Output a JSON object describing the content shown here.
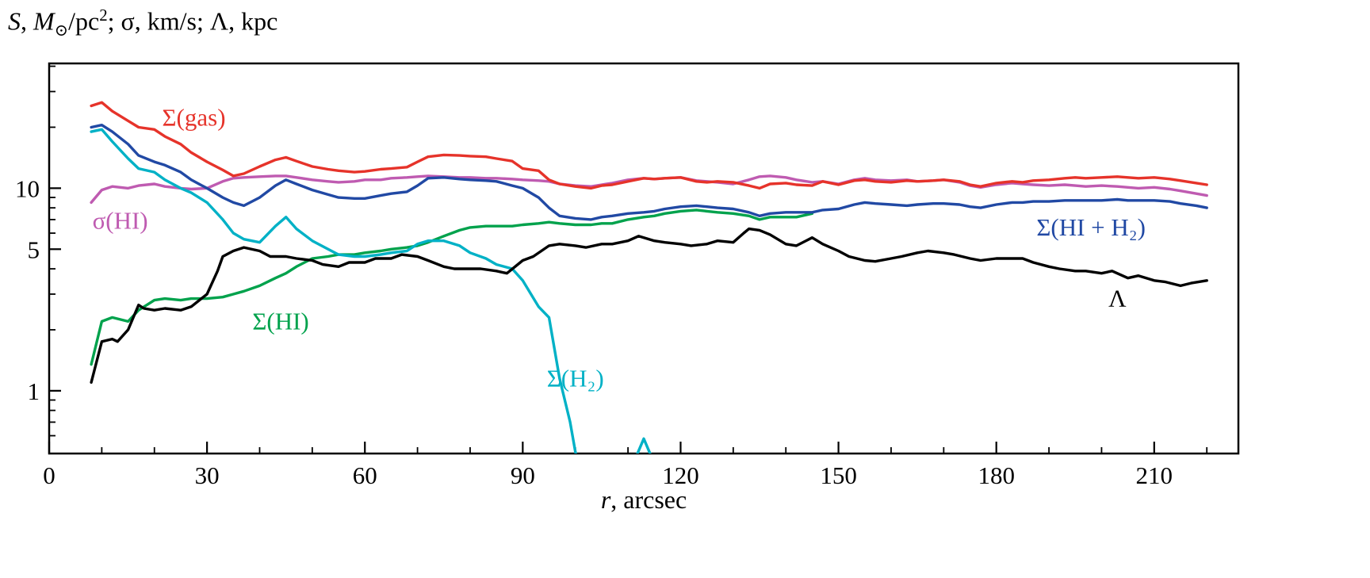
{
  "figure": {
    "y_axis_title_segments": [
      {
        "t": "S",
        "style": "it"
      },
      {
        "t": ", "
      },
      {
        "t": "M",
        "style": "it"
      },
      {
        "t": "⊙",
        "style": "sub"
      },
      {
        "t": "/pc"
      },
      {
        "t": "2",
        "style": "sup"
      },
      {
        "t": "; σ, km/s; Λ, kpc"
      }
    ],
    "x_axis_title_segments": [
      {
        "t": "r",
        "style": "it"
      },
      {
        "t": ", arcsec"
      }
    ]
  },
  "chart_data": {
    "type": "line",
    "title": "S, M⊙/pc²; σ, km/s; Λ, kpc",
    "xlabel": "r, arcsec",
    "ylabel": "S, M⊙/pc²; σ, km/s; Λ, kpc",
    "yscale": "log",
    "grid": false,
    "legend_position": "inline-labels",
    "xlim": [
      0,
      226
    ],
    "ylim": [
      0.49,
      41.3
    ],
    "x_ticks_major": [
      0,
      30,
      60,
      90,
      120,
      150,
      180,
      210
    ],
    "x_ticks_minor": [
      10,
      20,
      40,
      50,
      70,
      80,
      100,
      110,
      130,
      140,
      160,
      170,
      190,
      200,
      220
    ],
    "y_ticks_major": [
      {
        "v": 10,
        "label": "10"
      },
      {
        "v": 5,
        "label": "5"
      },
      {
        "v": 1,
        "label": "1"
      }
    ],
    "y_ticks_minor": [
      0.6,
      0.7,
      0.8,
      0.9,
      2,
      3,
      4,
      6,
      7,
      8,
      9,
      20,
      30,
      40
    ],
    "series": [
      {
        "id": "vel-dispersion-hi",
        "name": "σ(HI)",
        "color": "#bf5bb1",
        "x": [
          8,
          10,
          12,
          15,
          17,
          20,
          22,
          25,
          27,
          30,
          33,
          35,
          37,
          40,
          43,
          45,
          47,
          50,
          53,
          55,
          58,
          60,
          63,
          65,
          68,
          70,
          72,
          75,
          78,
          80,
          83,
          85,
          88,
          90,
          93,
          95,
          97,
          100,
          103,
          105,
          107,
          110,
          113,
          115,
          117,
          120,
          123,
          125,
          127,
          130,
          133,
          135,
          137,
          140,
          142,
          145,
          147,
          150,
          153,
          155,
          157,
          160,
          163,
          165,
          168,
          170,
          173,
          175,
          177,
          180,
          183,
          185,
          187,
          190,
          193,
          195,
          197,
          200,
          203,
          205,
          207,
          210,
          213,
          215,
          218,
          220
        ],
        "y": [
          8.5,
          9.8,
          10.2,
          10.0,
          10.3,
          10.5,
          10.2,
          10.0,
          9.9,
          10.0,
          10.8,
          11.2,
          11.3,
          11.4,
          11.5,
          11.5,
          11.3,
          11.0,
          10.8,
          10.7,
          10.8,
          11.0,
          11.0,
          11.2,
          11.3,
          11.4,
          11.5,
          11.4,
          11.3,
          11.3,
          11.2,
          11.2,
          11.1,
          11.0,
          10.9,
          10.8,
          10.5,
          10.3,
          10.2,
          10.4,
          10.6,
          11.0,
          11.2,
          11.1,
          11.2,
          11.3,
          10.9,
          10.8,
          10.7,
          10.5,
          11.0,
          11.4,
          11.5,
          11.3,
          11.0,
          10.7,
          10.8,
          10.5,
          11.0,
          11.2,
          11.0,
          10.9,
          11.0,
          10.8,
          10.9,
          11.0,
          10.7,
          10.3,
          10.1,
          10.4,
          10.6,
          10.5,
          10.4,
          10.3,
          10.4,
          10.3,
          10.2,
          10.3,
          10.2,
          10.1,
          10.0,
          10.1,
          9.9,
          9.7,
          9.4,
          9.2
        ]
      },
      {
        "id": "sigma-gas",
        "name": "Σ(gas)",
        "color": "#e6332a",
        "x": [
          8,
          10,
          12,
          15,
          17,
          20,
          22,
          25,
          27,
          30,
          33,
          35,
          37,
          40,
          43,
          45,
          47,
          50,
          53,
          55,
          58,
          60,
          63,
          65,
          68,
          70,
          72,
          75,
          78,
          80,
          83,
          85,
          88,
          90,
          93,
          95,
          97,
          100,
          103,
          105,
          107,
          110,
          113,
          115,
          117,
          120,
          123,
          125,
          127,
          130,
          133,
          135,
          137,
          140,
          142,
          145,
          147,
          150,
          153,
          155,
          157,
          160,
          163,
          165,
          168,
          170,
          173,
          175,
          177,
          180,
          183,
          185,
          187,
          190,
          193,
          195,
          197,
          200,
          203,
          205,
          207,
          210,
          213,
          215,
          218,
          220
        ],
        "y": [
          25.5,
          26.5,
          24,
          21.5,
          20,
          19.5,
          18,
          16.5,
          15,
          13.5,
          12.3,
          11.5,
          11.8,
          12.8,
          13.8,
          14.2,
          13.6,
          12.8,
          12.4,
          12.2,
          12.0,
          12.1,
          12.4,
          12.5,
          12.7,
          13.5,
          14.3,
          14.6,
          14.5,
          14.4,
          14.3,
          14.0,
          13.6,
          12.5,
          12.2,
          11.0,
          10.5,
          10.2,
          10.0,
          10.3,
          10.4,
          10.8,
          11.2,
          11.1,
          11.2,
          11.3,
          10.8,
          10.7,
          10.8,
          10.7,
          10.3,
          10.0,
          10.5,
          10.6,
          10.4,
          10.3,
          10.8,
          10.4,
          10.9,
          11.0,
          10.8,
          10.7,
          10.9,
          10.8,
          10.9,
          11.0,
          10.8,
          10.4,
          10.2,
          10.6,
          10.8,
          10.7,
          10.9,
          11.0,
          11.2,
          11.3,
          11.2,
          11.3,
          11.4,
          11.3,
          11.2,
          11.3,
          11.1,
          10.9,
          10.6,
          10.4
        ]
      },
      {
        "id": "sigma-hi",
        "name": "Σ(HI)",
        "color": "#00a24c",
        "x": [
          8,
          10,
          12,
          15,
          17,
          20,
          22,
          25,
          27,
          30,
          33,
          35,
          37,
          40,
          43,
          45,
          47,
          50,
          53,
          55,
          58,
          60,
          63,
          65,
          68,
          70,
          72,
          75,
          78,
          80,
          83,
          85,
          88,
          90,
          93,
          95,
          97,
          100,
          103,
          105,
          107,
          110,
          113,
          115,
          117,
          120,
          123,
          125,
          127,
          130,
          133,
          135,
          137,
          140,
          142,
          145
        ],
        "y": [
          1.35,
          2.2,
          2.3,
          2.2,
          2.5,
          2.8,
          2.85,
          2.8,
          2.85,
          2.85,
          2.9,
          3.0,
          3.1,
          3.3,
          3.6,
          3.8,
          4.1,
          4.5,
          4.6,
          4.7,
          4.7,
          4.8,
          4.9,
          5.0,
          5.1,
          5.2,
          5.4,
          5.8,
          6.2,
          6.4,
          6.5,
          6.5,
          6.5,
          6.6,
          6.7,
          6.8,
          6.7,
          6.6,
          6.6,
          6.7,
          6.7,
          7.0,
          7.2,
          7.3,
          7.5,
          7.7,
          7.8,
          7.7,
          7.6,
          7.5,
          7.3,
          7.0,
          7.2,
          7.2,
          7.2,
          7.5
        ]
      },
      {
        "id": "sigma-hi-plus-h2",
        "name": "Σ(HI + H₂)",
        "color": "#2149a4",
        "x": [
          8,
          10,
          12,
          15,
          17,
          20,
          22,
          25,
          27,
          30,
          33,
          35,
          37,
          40,
          43,
          45,
          47,
          50,
          53,
          55,
          58,
          60,
          63,
          65,
          68,
          70,
          72,
          75,
          78,
          80,
          83,
          85,
          88,
          90,
          93,
          95,
          97,
          100,
          103,
          105,
          107,
          110,
          113,
          115,
          117,
          120,
          123,
          125,
          127,
          130,
          133,
          135,
          137,
          140,
          142,
          145,
          147,
          150,
          153,
          155,
          157,
          160,
          163,
          165,
          168,
          170,
          173,
          175,
          177,
          180,
          183,
          185,
          187,
          190,
          193,
          195,
          197,
          200,
          203,
          205,
          207,
          210,
          213,
          215,
          218,
          220
        ],
        "y": [
          20,
          20.5,
          19,
          16.5,
          14.5,
          13.5,
          13.0,
          12.0,
          11.0,
          10.0,
          9.0,
          8.5,
          8.2,
          9.0,
          10.3,
          11.0,
          10.5,
          9.8,
          9.3,
          9.0,
          8.9,
          8.9,
          9.2,
          9.4,
          9.6,
          10.3,
          11.2,
          11.3,
          11.1,
          11.0,
          10.9,
          10.8,
          10.3,
          10.0,
          9.0,
          8.0,
          7.3,
          7.1,
          7.0,
          7.2,
          7.3,
          7.5,
          7.6,
          7.7,
          7.9,
          8.1,
          8.2,
          8.1,
          8.0,
          7.9,
          7.6,
          7.3,
          7.5,
          7.6,
          7.6,
          7.6,
          7.8,
          7.9,
          8.3,
          8.5,
          8.4,
          8.3,
          8.2,
          8.3,
          8.4,
          8.4,
          8.3,
          8.1,
          8.0,
          8.3,
          8.5,
          8.5,
          8.6,
          8.6,
          8.7,
          8.7,
          8.7,
          8.7,
          8.8,
          8.7,
          8.7,
          8.7,
          8.6,
          8.4,
          8.2,
          8.0
        ]
      },
      {
        "id": "sigma-h2",
        "name": "Σ(H₂)",
        "color": "#00b1c6",
        "x": [
          8,
          10,
          12,
          15,
          17,
          20,
          22,
          25,
          27,
          30,
          33,
          35,
          37,
          40,
          43,
          45,
          47,
          50,
          53,
          55,
          58,
          60,
          63,
          65,
          68,
          70,
          72,
          75,
          78,
          80,
          83,
          85,
          88,
          90,
          93,
          95,
          97,
          99,
          100,
          101,
          105,
          110,
          113,
          116,
          117
        ],
        "y": [
          19,
          19.5,
          17,
          14,
          12.5,
          12,
          11,
          10,
          9.5,
          8.5,
          7.0,
          6.0,
          5.6,
          5.4,
          6.5,
          7.2,
          6.3,
          5.5,
          5.0,
          4.7,
          4.6,
          4.6,
          4.7,
          4.8,
          4.9,
          5.3,
          5.5,
          5.5,
          5.2,
          4.8,
          4.5,
          4.2,
          4.0,
          3.5,
          2.6,
          2.3,
          1.15,
          0.7,
          0.5,
          0.38,
          0.36,
          0.38,
          0.58,
          0.38,
          0.35
        ]
      },
      {
        "id": "lambda",
        "name": "Λ",
        "color": "#000000",
        "x": [
          8,
          10,
          12,
          13,
          15,
          17,
          18,
          20,
          22,
          25,
          27,
          30,
          32,
          33,
          35,
          37,
          40,
          42,
          45,
          47,
          50,
          52,
          55,
          57,
          60,
          62,
          65,
          67,
          70,
          72,
          75,
          77,
          80,
          82,
          85,
          87,
          90,
          92,
          95,
          97,
          100,
          102,
          105,
          107,
          110,
          112,
          115,
          117,
          120,
          122,
          125,
          127,
          130,
          132,
          133,
          135,
          137,
          140,
          142,
          145,
          147,
          150,
          152,
          155,
          157,
          160,
          162,
          165,
          167,
          170,
          172,
          175,
          177,
          180,
          182,
          185,
          187,
          190,
          192,
          195,
          197,
          200,
          202,
          205,
          207,
          210,
          212,
          215,
          217,
          220
        ],
        "y": [
          1.1,
          1.75,
          1.8,
          1.75,
          2.0,
          2.65,
          2.55,
          2.5,
          2.55,
          2.5,
          2.6,
          3.0,
          3.9,
          4.6,
          4.9,
          5.1,
          4.9,
          4.6,
          4.6,
          4.5,
          4.4,
          4.2,
          4.1,
          4.3,
          4.3,
          4.5,
          4.5,
          4.7,
          4.6,
          4.4,
          4.1,
          4.0,
          4.0,
          4.0,
          3.9,
          3.8,
          4.4,
          4.6,
          5.2,
          5.3,
          5.2,
          5.1,
          5.3,
          5.3,
          5.5,
          5.8,
          5.5,
          5.4,
          5.3,
          5.2,
          5.3,
          5.5,
          5.4,
          6.0,
          6.3,
          6.2,
          5.9,
          5.3,
          5.2,
          5.7,
          5.3,
          4.9,
          4.6,
          4.4,
          4.35,
          4.5,
          4.6,
          4.8,
          4.9,
          4.8,
          4.7,
          4.5,
          4.4,
          4.5,
          4.5,
          4.5,
          4.3,
          4.1,
          4.0,
          3.9,
          3.9,
          3.8,
          3.9,
          3.6,
          3.7,
          3.5,
          3.45,
          3.3,
          3.4,
          3.5
        ]
      }
    ],
    "labels": [
      {
        "id": "sigma-gas",
        "text": "Σ(gas)",
        "color": "#e6332a",
        "r": 27.5,
        "v": 22.3
      },
      {
        "id": "vel-dispersion-hi",
        "text": "σ(HI)",
        "color": "#bf5bb1",
        "r": 13.5,
        "v": 6.9
      },
      {
        "id": "sigma-hi-plus-h2",
        "text": "Σ(HI + H₂)",
        "color": "#2149a4",
        "r": 198,
        "v": 6.4
      },
      {
        "id": "sigma-hi",
        "text": "Σ(HI)",
        "color": "#00a24c",
        "r": 44,
        "v": 2.2
      },
      {
        "id": "sigma-h2",
        "text": "Σ(H₂)",
        "color": "#00b1c6",
        "r": 100,
        "v": 1.15
      },
      {
        "id": "lambda",
        "text": "Λ",
        "color": "#000000",
        "r": 203,
        "v": 2.85
      }
    ]
  }
}
